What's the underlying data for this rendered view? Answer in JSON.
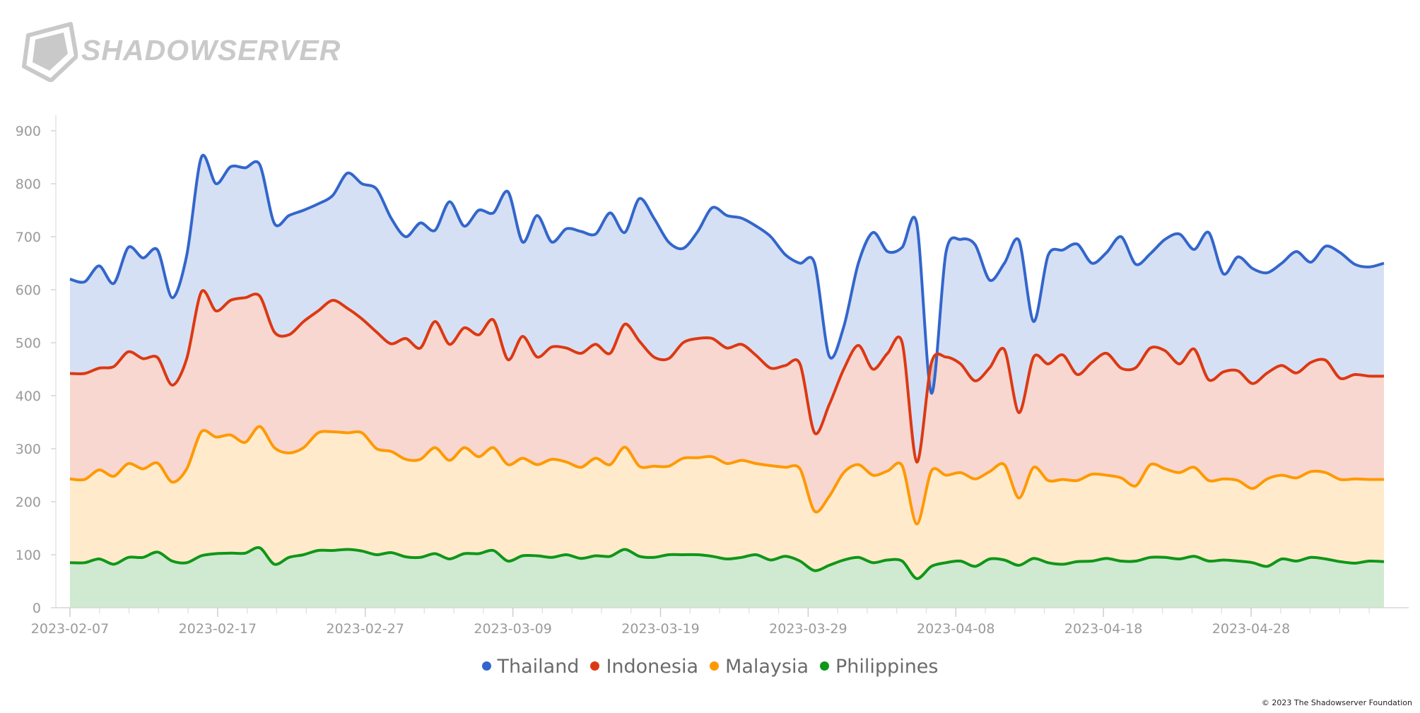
{
  "brand": {
    "name": "SHADOWSERVER",
    "logo_color": "#c9c9c9"
  },
  "footer": {
    "copyright": "© 2023 The Shadowserver Foundation"
  },
  "chart_data": {
    "type": "area",
    "stacked": true,
    "title": "",
    "xlabel": "",
    "ylabel": "",
    "ylim": [
      0,
      900
    ],
    "y_ticks": [
      0,
      100,
      200,
      300,
      400,
      500,
      600,
      700,
      800,
      900
    ],
    "x_tick_labels": [
      "2023-02-07",
      "2023-02-17",
      "2023-02-27",
      "2023-03-09",
      "2023-03-19",
      "2023-03-29",
      "2023-04-08",
      "2023-04-18",
      "2023-04-28"
    ],
    "x_start": "2023-02-07",
    "x_end": "2023-05-07",
    "grid": false,
    "legend_position": "bottom",
    "series": [
      {
        "name": "Thailand",
        "color": "#3366cc",
        "stacked_totals": [
          620,
          615,
          645,
          612,
          680,
          660,
          675,
          585,
          665,
          850,
          800,
          832,
          830,
          836,
          725,
          740,
          750,
          762,
          778,
          820,
          800,
          790,
          735,
          700,
          726,
          712,
          766,
          720,
          750,
          745,
          785,
          690,
          740,
          690,
          715,
          710,
          705,
          745,
          708,
          772,
          735,
          690,
          678,
          710,
          755,
          740,
          735,
          720,
          700,
          666,
          650,
          650,
          475,
          530,
          650,
          708,
          672,
          680,
          725,
          405,
          670,
          695,
          685,
          618,
          650,
          693,
          540,
          665,
          675,
          686,
          650,
          670,
          700,
          648,
          668,
          695,
          705,
          676,
          708,
          630,
          662,
          640,
          632,
          650,
          672,
          652,
          682,
          670,
          648,
          643,
          650
        ]
      },
      {
        "name": "Indonesia",
        "color": "#dc3912",
        "stacked_totals": [
          442,
          442,
          452,
          455,
          483,
          470,
          472,
          420,
          470,
          596,
          560,
          580,
          585,
          588,
          520,
          515,
          540,
          560,
          580,
          565,
          545,
          520,
          498,
          508,
          490,
          540,
          497,
          528,
          515,
          543,
          468,
          512,
          473,
          492,
          490,
          480,
          497,
          480,
          535,
          503,
          473,
          470,
          500,
          508,
          508,
          490,
          497,
          476,
          452,
          457,
          460,
          330,
          383,
          450,
          495,
          450,
          480,
          500,
          275,
          462,
          473,
          460,
          428,
          453,
          487,
          368,
          473,
          460,
          477,
          440,
          463,
          480,
          452,
          453,
          490,
          485,
          460,
          488,
          430,
          445,
          447,
          423,
          443,
          457,
          443,
          463,
          467,
          433,
          440,
          437,
          437
        ]
      },
      {
        "name": "Malaysia",
        "color": "#ff9900",
        "stacked_totals": [
          243,
          242,
          260,
          248,
          272,
          262,
          273,
          237,
          262,
          332,
          322,
          326,
          312,
          342,
          302,
          292,
          302,
          330,
          332,
          330,
          330,
          300,
          295,
          280,
          280,
          302,
          278,
          302,
          285,
          302,
          270,
          282,
          270,
          280,
          275,
          265,
          282,
          270,
          303,
          267,
          267,
          267,
          282,
          283,
          285,
          272,
          278,
          272,
          268,
          265,
          262,
          182,
          210,
          255,
          270,
          250,
          258,
          268,
          158,
          258,
          250,
          255,
          243,
          257,
          270,
          207,
          265,
          240,
          242,
          240,
          252,
          250,
          245,
          230,
          270,
          262,
          255,
          265,
          240,
          243,
          240,
          225,
          243,
          250,
          245,
          257,
          255,
          242,
          243,
          242,
          242
        ]
      },
      {
        "name": "Philippines",
        "color": "#109618",
        "stacked_totals": [
          85,
          85,
          92,
          82,
          95,
          95,
          105,
          88,
          85,
          98,
          102,
          103,
          103,
          113,
          82,
          95,
          100,
          108,
          108,
          110,
          107,
          100,
          104,
          96,
          95,
          102,
          92,
          102,
          102,
          108,
          88,
          98,
          98,
          95,
          100,
          93,
          98,
          97,
          110,
          97,
          95,
          100,
          100,
          100,
          97,
          92,
          95,
          100,
          90,
          97,
          88,
          70,
          80,
          90,
          95,
          85,
          90,
          88,
          55,
          78,
          85,
          88,
          78,
          92,
          90,
          80,
          93,
          85,
          82,
          87,
          88,
          93,
          88,
          88,
          95,
          95,
          92,
          97,
          88,
          90,
          88,
          85,
          78,
          92,
          88,
          95,
          92,
          87,
          84,
          88,
          87
        ]
      }
    ]
  }
}
